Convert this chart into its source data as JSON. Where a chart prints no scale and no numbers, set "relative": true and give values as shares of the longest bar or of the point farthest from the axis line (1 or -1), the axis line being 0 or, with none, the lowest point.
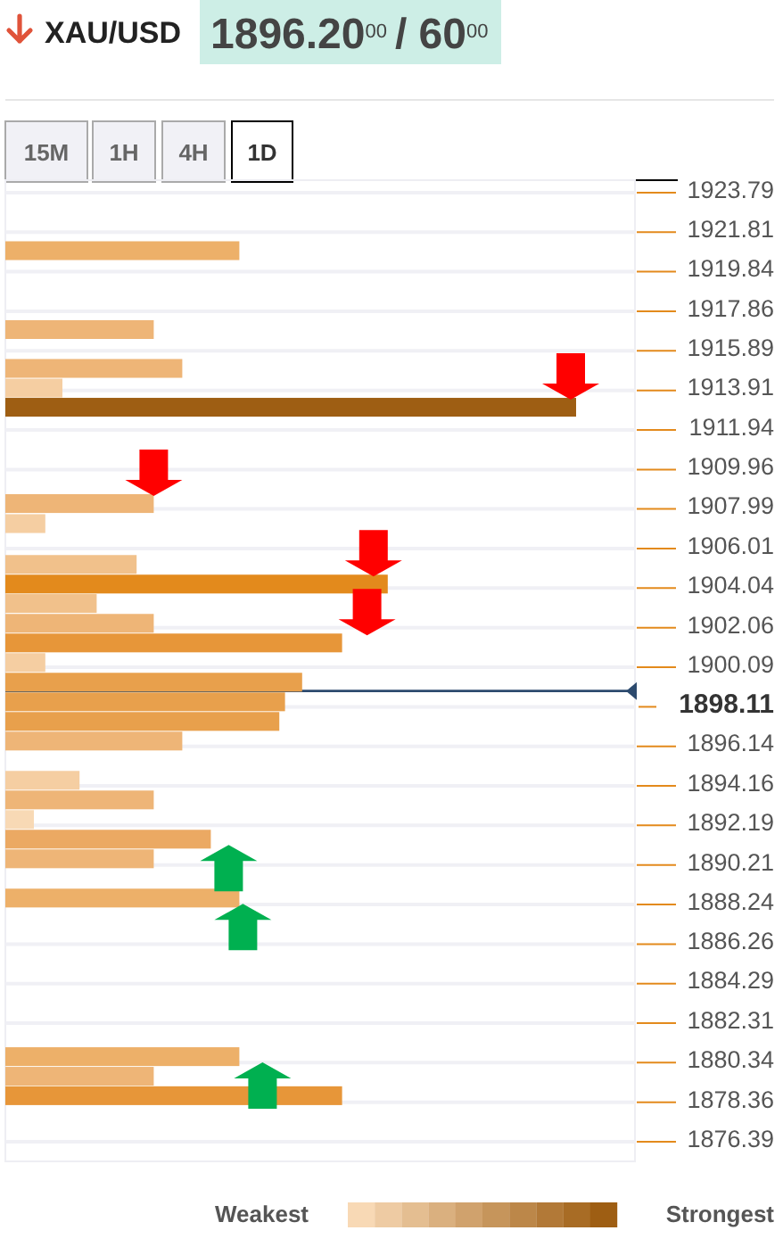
{
  "chart_data": {
    "type": "bar",
    "orientation": "horizontal",
    "relative": true,
    "title": "XAU/USD",
    "subtitle": "1896.20$^{00}$ / 60$^{00}$",
    "annotations": [
      "15M",
      "1H",
      "4H",
      "1D",
      "Weakest",
      "Strongest"
    ],
    "x": [
      1920.89,
      1916.95,
      1915.01,
      1914.03,
      1913.07,
      1908.26,
      1907.26,
      1905.22,
      1904.24,
      1903.27,
      1902.28,
      1901.3,
      1900.32,
      1899.34,
      1898.36,
      1897.38,
      1896.4,
      1894.44,
      1893.46,
      1892.48,
      1891.5,
      1890.52,
      1888.56,
      1880.64,
      1879.66,
      1878.69
    ],
    "values": [
      0.41,
      0.26,
      0.31,
      0.1,
      1,
      0.26,
      0.07,
      0.23,
      0.67,
      0.16,
      0.26,
      0.59,
      0.07,
      0.52,
      0.49,
      0.48,
      0.31,
      0.13,
      0.26,
      0.05,
      0.36,
      0.26,
      0.41,
      0.41,
      0.26,
      0.59
    ],
    "colors": [
      "#edb069",
      "#eeb577",
      "#eeb577",
      "#f5cea2",
      "#9e5e13",
      "#eeb577",
      "#f5cea2",
      "#f1c18b",
      "#e38a1c",
      "#f1c18b",
      "#eeb577",
      "#e79639",
      "#f5cea2",
      "#e8a04c",
      "#e8a04c",
      "#e8a04c",
      "#eeb577",
      "#f5cea2",
      "#eeb577",
      "#f8d9b5",
      "#eba963",
      "#eeb577",
      "#edb069",
      "#edb069",
      "#eeb577",
      "#e79639"
    ],
    "ylim": [
      1875.41,
      1924.41
    ],
    "yticks": [
      1923.79,
      1921.81,
      1919.84,
      1917.86,
      1915.89,
      1913.91,
      1911.94,
      1909.96,
      1907.99,
      1906.01,
      1904.04,
      1902.06,
      1900.09,
      1898.11,
      1896.14,
      1894.16,
      1892.19,
      1890.21,
      1888.24,
      1886.26,
      1884.29,
      1882.31,
      1880.34,
      1878.36,
      1876.39
    ],
    "ref_lines": [
      {
        "axis": "y",
        "value": 1898.9,
        "color": "#2c4a6e"
      }
    ],
    "grid": "y"
  }
}
